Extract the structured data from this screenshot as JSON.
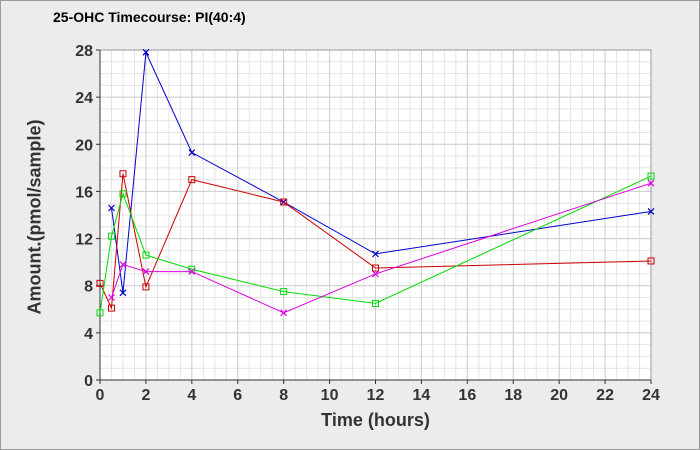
{
  "chart_data": {
    "type": "line",
    "title": "25-OHC Timecourse: PI(40:4)",
    "xlabel": "Time (hours)",
    "ylabel": "Amount.(pmol/sample)",
    "xlim": [
      0,
      24
    ],
    "ylim": [
      0,
      28
    ],
    "xticks": [
      0,
      2,
      4,
      6,
      8,
      10,
      12,
      14,
      16,
      18,
      20,
      22,
      24
    ],
    "yticks": [
      0,
      4,
      8,
      12,
      16,
      20,
      24,
      28
    ],
    "grid": true,
    "legend": "none",
    "series": [
      {
        "color": "#0000cc",
        "marker": "x",
        "x": [
          0.5,
          1,
          2,
          4,
          8,
          12,
          24
        ],
        "y": [
          14.6,
          7.4,
          27.8,
          19.3,
          15.1,
          10.7,
          14.3
        ]
      },
      {
        "color": "#cc0000",
        "marker": "square",
        "x": [
          0,
          0.5,
          1,
          2,
          4,
          8,
          12,
          24
        ],
        "y": [
          8.2,
          6.1,
          17.5,
          7.9,
          17.0,
          15.1,
          9.5,
          10.1
        ]
      },
      {
        "color": "#00dd00",
        "marker": "square",
        "x": [
          0,
          0.5,
          1,
          2,
          4,
          8,
          12,
          24
        ],
        "y": [
          5.7,
          12.2,
          15.8,
          10.6,
          9.4,
          7.5,
          6.5,
          17.3
        ]
      },
      {
        "color": "#dd00dd",
        "marker": "x",
        "x": [
          0.5,
          1,
          2,
          4,
          8,
          12,
          24
        ],
        "y": [
          7.0,
          9.8,
          9.2,
          9.2,
          5.7,
          9.0,
          16.7
        ]
      }
    ]
  }
}
